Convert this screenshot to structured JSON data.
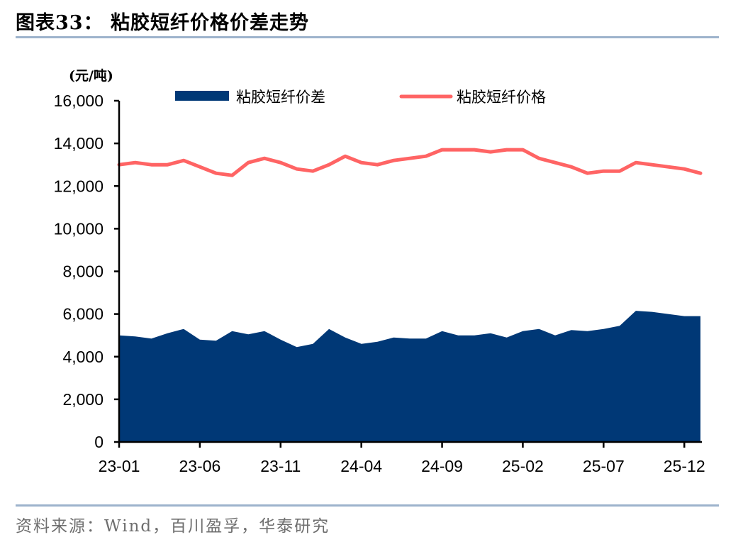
{
  "header": {
    "title": "图表33：  粘胶短纤价格价差走势"
  },
  "footer": {
    "source": "资料来源：Wind，百川盈孚，华泰研究"
  },
  "colors": {
    "spread": "#003876",
    "price": "#ff6464",
    "rule": "#9db3cc"
  },
  "chart_data": {
    "type": "area+line",
    "title": "粘胶短纤价格价差走势",
    "ylabel": "(元/吨)",
    "xlabel": "",
    "ylim": [
      0,
      16000
    ],
    "yticks": [
      "0",
      "2,000",
      "4,000",
      "6,000",
      "8,000",
      "10,000",
      "12,000",
      "14,000",
      "16,000"
    ],
    "xticks": [
      "23-01",
      "23-06",
      "23-11",
      "24-04",
      "24-09",
      "25-02",
      "25-07",
      "25-12"
    ],
    "grid": false,
    "legend_position": "top",
    "x": [
      "23-01",
      "23-02",
      "23-03",
      "23-04",
      "23-05",
      "23-06",
      "23-07",
      "23-08",
      "23-09",
      "23-10",
      "23-11",
      "23-12",
      "24-01",
      "24-02",
      "24-03",
      "24-04",
      "24-05",
      "24-06",
      "24-07",
      "24-08",
      "24-09",
      "24-10",
      "24-11",
      "24-12",
      "25-01",
      "25-02",
      "25-03",
      "25-04",
      "25-05",
      "25-06",
      "25-07",
      "25-08",
      "25-09",
      "25-10",
      "25-11",
      "25-12",
      "26-01"
    ],
    "series": [
      {
        "name": "粘胶短纤价差",
        "type": "area",
        "color": "#003876",
        "values": [
          5000,
          4950,
          4850,
          5100,
          5300,
          4800,
          4750,
          5200,
          5050,
          5200,
          4800,
          4450,
          4600,
          5300,
          4900,
          4600,
          4700,
          4900,
          4850,
          4850,
          5200,
          5000,
          5000,
          5100,
          4900,
          5200,
          5300,
          5000,
          5250,
          5200,
          5300,
          5450,
          6150,
          6100,
          6000,
          5900,
          5900
        ]
      },
      {
        "name": "粘胶短纤价格",
        "type": "line",
        "color": "#ff6464",
        "values": [
          13000,
          13100,
          13000,
          13000,
          13200,
          12900,
          12600,
          12500,
          13100,
          13300,
          13100,
          12800,
          12700,
          13000,
          13400,
          13100,
          13000,
          13200,
          13300,
          13400,
          13700,
          13700,
          13700,
          13600,
          13700,
          13700,
          13300,
          13100,
          12900,
          12600,
          12700,
          12700,
          13100,
          13000,
          12900,
          12800,
          12600
        ]
      }
    ]
  }
}
